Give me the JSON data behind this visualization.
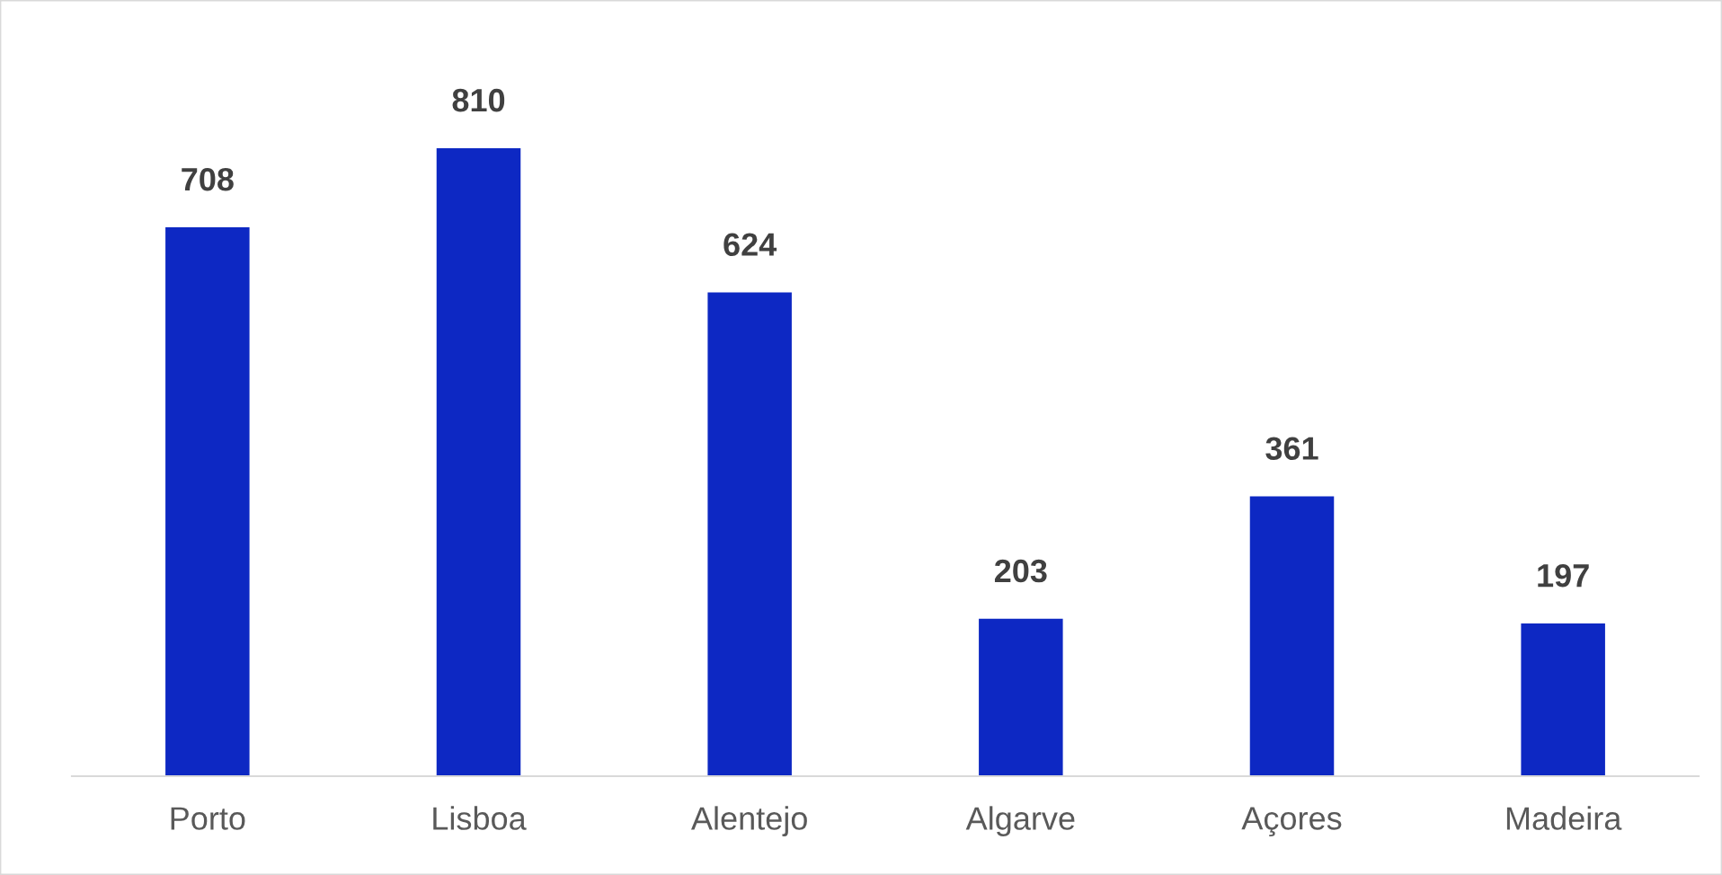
{
  "chart_data": {
    "type": "bar",
    "categories": [
      "Porto",
      "Lisboa",
      "Alentejo",
      "Algarve",
      "Açores",
      "Madeira"
    ],
    "values": [
      708,
      810,
      624,
      203,
      361,
      197
    ],
    "color": "#0d28c3",
    "data_labels": true,
    "grid": false,
    "legend": false
  }
}
